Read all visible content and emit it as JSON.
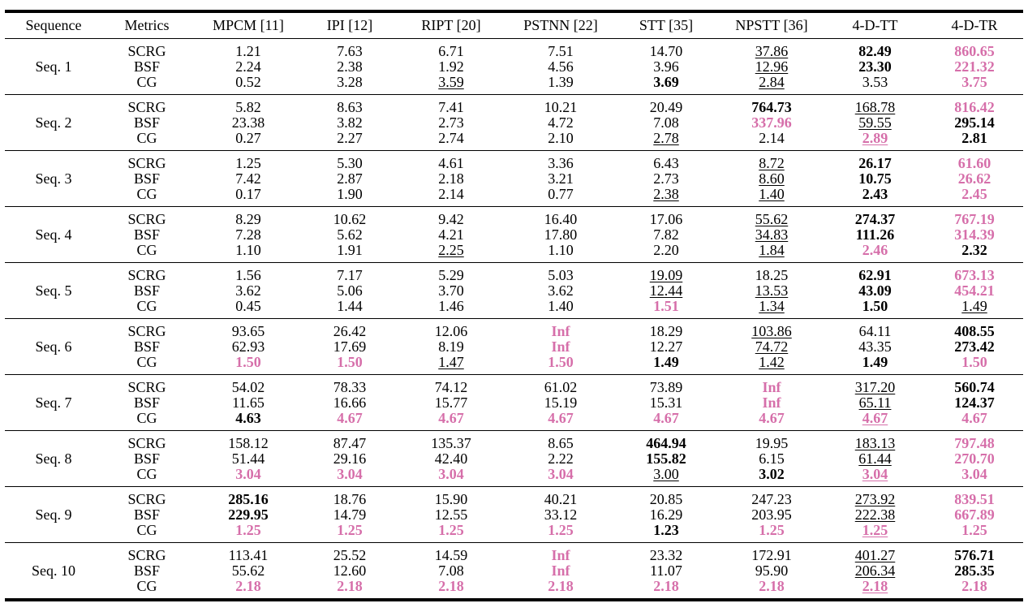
{
  "headers": [
    "Sequence",
    "Metrics",
    "MPCM [11]",
    "IPI [12]",
    "RIPT [20]",
    "PSTNN [22]",
    "STT [35]",
    "NPSTT [36]",
    "4-D-TT",
    "4-D-TR"
  ],
  "metric_names": [
    "SCRG",
    "BSF",
    "CG"
  ],
  "style_legend": {
    "n": "normal",
    "b": "bold",
    "p": "pink-bold (#d66faa)",
    "u": "underlined"
  },
  "colors": {
    "highlight": "#d66faa"
  },
  "rows": [
    {
      "seq": "Seq. 1",
      "cells": [
        [
          [
            "1.21",
            "n"
          ],
          [
            "2.24",
            "n"
          ],
          [
            "0.52",
            "n"
          ]
        ],
        [
          [
            "7.63",
            "n"
          ],
          [
            "2.38",
            "n"
          ],
          [
            "3.28",
            "n"
          ]
        ],
        [
          [
            "6.71",
            "n"
          ],
          [
            "1.92",
            "n"
          ],
          [
            "3.59",
            "u"
          ]
        ],
        [
          [
            "7.51",
            "n"
          ],
          [
            "4.56",
            "n"
          ],
          [
            "1.39",
            "n"
          ]
        ],
        [
          [
            "14.70",
            "n"
          ],
          [
            "3.96",
            "n"
          ],
          [
            "3.69",
            "b"
          ]
        ],
        [
          [
            "37.86",
            "u"
          ],
          [
            "12.96",
            "u"
          ],
          [
            "2.84",
            "u"
          ]
        ],
        [
          [
            "82.49",
            "b"
          ],
          [
            "23.30",
            "b"
          ],
          [
            "3.53",
            "n"
          ]
        ],
        [
          [
            "860.65",
            "p"
          ],
          [
            "221.32",
            "p"
          ],
          [
            "3.75",
            "p"
          ]
        ]
      ]
    },
    {
      "seq": "Seq. 2",
      "cells": [
        [
          [
            "5.82",
            "n"
          ],
          [
            "23.38",
            "n"
          ],
          [
            "0.27",
            "n"
          ]
        ],
        [
          [
            "8.63",
            "n"
          ],
          [
            "3.82",
            "n"
          ],
          [
            "2.27",
            "n"
          ]
        ],
        [
          [
            "7.41",
            "n"
          ],
          [
            "2.73",
            "n"
          ],
          [
            "2.74",
            "n"
          ]
        ],
        [
          [
            "10.21",
            "n"
          ],
          [
            "4.72",
            "n"
          ],
          [
            "2.10",
            "n"
          ]
        ],
        [
          [
            "20.49",
            "n"
          ],
          [
            "7.08",
            "n"
          ],
          [
            "2.78",
            "u"
          ]
        ],
        [
          [
            "764.73",
            "b"
          ],
          [
            "337.96",
            "p"
          ],
          [
            "2.14",
            "n"
          ]
        ],
        [
          [
            "168.78",
            "u"
          ],
          [
            "59.55",
            "u"
          ],
          [
            "2.89",
            "pu"
          ]
        ],
        [
          [
            "816.42",
            "p"
          ],
          [
            "295.14",
            "b"
          ],
          [
            "2.81",
            "b"
          ]
        ]
      ]
    },
    {
      "seq": "Seq. 3",
      "cells": [
        [
          [
            "1.25",
            "n"
          ],
          [
            "7.42",
            "n"
          ],
          [
            "0.17",
            "n"
          ]
        ],
        [
          [
            "5.30",
            "n"
          ],
          [
            "2.87",
            "n"
          ],
          [
            "1.90",
            "n"
          ]
        ],
        [
          [
            "4.61",
            "n"
          ],
          [
            "2.18",
            "n"
          ],
          [
            "2.14",
            "n"
          ]
        ],
        [
          [
            "3.36",
            "n"
          ],
          [
            "3.21",
            "n"
          ],
          [
            "0.77",
            "n"
          ]
        ],
        [
          [
            "6.43",
            "n"
          ],
          [
            "2.73",
            "n"
          ],
          [
            "2.38",
            "u"
          ]
        ],
        [
          [
            "8.72",
            "u"
          ],
          [
            "8.60",
            "u"
          ],
          [
            "1.40",
            "u"
          ]
        ],
        [
          [
            "26.17",
            "b"
          ],
          [
            "10.75",
            "b"
          ],
          [
            "2.43",
            "b"
          ]
        ],
        [
          [
            "61.60",
            "p"
          ],
          [
            "26.62",
            "p"
          ],
          [
            "2.45",
            "p"
          ]
        ]
      ]
    },
    {
      "seq": "Seq. 4",
      "cells": [
        [
          [
            "8.29",
            "n"
          ],
          [
            "7.28",
            "n"
          ],
          [
            "1.10",
            "n"
          ]
        ],
        [
          [
            "10.62",
            "n"
          ],
          [
            "5.62",
            "n"
          ],
          [
            "1.91",
            "n"
          ]
        ],
        [
          [
            "9.42",
            "n"
          ],
          [
            "4.21",
            "n"
          ],
          [
            "2.25",
            "u"
          ]
        ],
        [
          [
            "16.40",
            "n"
          ],
          [
            "17.80",
            "n"
          ],
          [
            "1.10",
            "n"
          ]
        ],
        [
          [
            "17.06",
            "n"
          ],
          [
            "7.82",
            "n"
          ],
          [
            "2.20",
            "n"
          ]
        ],
        [
          [
            "55.62",
            "u"
          ],
          [
            "34.83",
            "u"
          ],
          [
            "1.84",
            "u"
          ]
        ],
        [
          [
            "274.37",
            "b"
          ],
          [
            "111.26",
            "b"
          ],
          [
            "2.46",
            "p"
          ]
        ],
        [
          [
            "767.19",
            "p"
          ],
          [
            "314.39",
            "p"
          ],
          [
            "2.32",
            "b"
          ]
        ]
      ]
    },
    {
      "seq": "Seq. 5",
      "cells": [
        [
          [
            "1.56",
            "n"
          ],
          [
            "3.62",
            "n"
          ],
          [
            "0.45",
            "n"
          ]
        ],
        [
          [
            "7.17",
            "n"
          ],
          [
            "5.06",
            "n"
          ],
          [
            "1.44",
            "n"
          ]
        ],
        [
          [
            "5.29",
            "n"
          ],
          [
            "3.70",
            "n"
          ],
          [
            "1.46",
            "n"
          ]
        ],
        [
          [
            "5.03",
            "n"
          ],
          [
            "3.62",
            "n"
          ],
          [
            "1.40",
            "n"
          ]
        ],
        [
          [
            "19.09",
            "u"
          ],
          [
            "12.44",
            "u"
          ],
          [
            "1.51",
            "p"
          ]
        ],
        [
          [
            "18.25",
            "n"
          ],
          [
            "13.53",
            "u"
          ],
          [
            "1.34",
            "u"
          ]
        ],
        [
          [
            "62.91",
            "b"
          ],
          [
            "43.09",
            "b"
          ],
          [
            "1.50",
            "b"
          ]
        ],
        [
          [
            "673.13",
            "p"
          ],
          [
            "454.21",
            "p"
          ],
          [
            "1.49",
            "u"
          ]
        ]
      ]
    },
    {
      "seq": "Seq. 6",
      "cells": [
        [
          [
            "93.65",
            "n"
          ],
          [
            "62.93",
            "n"
          ],
          [
            "1.50",
            "p"
          ]
        ],
        [
          [
            "26.42",
            "n"
          ],
          [
            "17.69",
            "n"
          ],
          [
            "1.50",
            "p"
          ]
        ],
        [
          [
            "12.06",
            "n"
          ],
          [
            "8.19",
            "n"
          ],
          [
            "1.47",
            "u"
          ]
        ],
        [
          [
            "Inf",
            "p"
          ],
          [
            "Inf",
            "p"
          ],
          [
            "1.50",
            "p"
          ]
        ],
        [
          [
            "18.29",
            "n"
          ],
          [
            "12.27",
            "n"
          ],
          [
            "1.49",
            "b"
          ]
        ],
        [
          [
            "103.86",
            "u"
          ],
          [
            "74.72",
            "u"
          ],
          [
            "1.42",
            "u"
          ]
        ],
        [
          [
            "64.11",
            "n"
          ],
          [
            "43.35",
            "n"
          ],
          [
            "1.49",
            "b"
          ]
        ],
        [
          [
            "408.55",
            "b"
          ],
          [
            "273.42",
            "b"
          ],
          [
            "1.50",
            "p"
          ]
        ]
      ]
    },
    {
      "seq": "Seq. 7",
      "cells": [
        [
          [
            "54.02",
            "n"
          ],
          [
            "11.65",
            "n"
          ],
          [
            "4.63",
            "b"
          ]
        ],
        [
          [
            "78.33",
            "n"
          ],
          [
            "16.66",
            "n"
          ],
          [
            "4.67",
            "p"
          ]
        ],
        [
          [
            "74.12",
            "n"
          ],
          [
            "15.77",
            "n"
          ],
          [
            "4.67",
            "p"
          ]
        ],
        [
          [
            "61.02",
            "n"
          ],
          [
            "15.19",
            "n"
          ],
          [
            "4.67",
            "p"
          ]
        ],
        [
          [
            "73.89",
            "n"
          ],
          [
            "15.31",
            "n"
          ],
          [
            "4.67",
            "p"
          ]
        ],
        [
          [
            "Inf",
            "p"
          ],
          [
            "Inf",
            "p"
          ],
          [
            "4.67",
            "p"
          ]
        ],
        [
          [
            "317.20",
            "u"
          ],
          [
            "65.11",
            "u"
          ],
          [
            "4.67",
            "pu"
          ]
        ],
        [
          [
            "560.74",
            "b"
          ],
          [
            "124.37",
            "b"
          ],
          [
            "4.67",
            "p"
          ]
        ]
      ]
    },
    {
      "seq": "Seq. 8",
      "cells": [
        [
          [
            "158.12",
            "n"
          ],
          [
            "51.44",
            "n"
          ],
          [
            "3.04",
            "p"
          ]
        ],
        [
          [
            "87.47",
            "n"
          ],
          [
            "29.16",
            "n"
          ],
          [
            "3.04",
            "p"
          ]
        ],
        [
          [
            "135.37",
            "n"
          ],
          [
            "42.40",
            "n"
          ],
          [
            "3.04",
            "p"
          ]
        ],
        [
          [
            "8.65",
            "n"
          ],
          [
            "2.22",
            "n"
          ],
          [
            "3.04",
            "p"
          ]
        ],
        [
          [
            "464.94",
            "b"
          ],
          [
            "155.82",
            "b"
          ],
          [
            "3.00",
            "u"
          ]
        ],
        [
          [
            "19.95",
            "n"
          ],
          [
            "6.15",
            "n"
          ],
          [
            "3.02",
            "b"
          ]
        ],
        [
          [
            "183.13",
            "u"
          ],
          [
            "61.44",
            "u"
          ],
          [
            "3.04",
            "pu"
          ]
        ],
        [
          [
            "797.48",
            "p"
          ],
          [
            "270.70",
            "p"
          ],
          [
            "3.04",
            "p"
          ]
        ]
      ]
    },
    {
      "seq": "Seq. 9",
      "cells": [
        [
          [
            "285.16",
            "b"
          ],
          [
            "229.95",
            "b"
          ],
          [
            "1.25",
            "p"
          ]
        ],
        [
          [
            "18.76",
            "n"
          ],
          [
            "14.79",
            "n"
          ],
          [
            "1.25",
            "p"
          ]
        ],
        [
          [
            "15.90",
            "n"
          ],
          [
            "12.55",
            "n"
          ],
          [
            "1.25",
            "p"
          ]
        ],
        [
          [
            "40.21",
            "n"
          ],
          [
            "33.12",
            "n"
          ],
          [
            "1.25",
            "p"
          ]
        ],
        [
          [
            "20.85",
            "n"
          ],
          [
            "16.29",
            "n"
          ],
          [
            "1.23",
            "b"
          ]
        ],
        [
          [
            "247.23",
            "n"
          ],
          [
            "203.95",
            "n"
          ],
          [
            "1.25",
            "p"
          ]
        ],
        [
          [
            "273.92",
            "u"
          ],
          [
            "222.38",
            "u"
          ],
          [
            "1.25",
            "pu"
          ]
        ],
        [
          [
            "839.51",
            "p"
          ],
          [
            "667.89",
            "p"
          ],
          [
            "1.25",
            "p"
          ]
        ]
      ]
    },
    {
      "seq": "Seq. 10",
      "cells": [
        [
          [
            "113.41",
            "n"
          ],
          [
            "55.62",
            "n"
          ],
          [
            "2.18",
            "p"
          ]
        ],
        [
          [
            "25.52",
            "n"
          ],
          [
            "12.60",
            "n"
          ],
          [
            "2.18",
            "p"
          ]
        ],
        [
          [
            "14.59",
            "n"
          ],
          [
            "7.08",
            "n"
          ],
          [
            "2.18",
            "p"
          ]
        ],
        [
          [
            "Inf",
            "p"
          ],
          [
            "Inf",
            "p"
          ],
          [
            "2.18",
            "p"
          ]
        ],
        [
          [
            "23.32",
            "n"
          ],
          [
            "11.07",
            "n"
          ],
          [
            "2.18",
            "p"
          ]
        ],
        [
          [
            "172.91",
            "n"
          ],
          [
            "95.90",
            "n"
          ],
          [
            "2.18",
            "p"
          ]
        ],
        [
          [
            "401.27",
            "u"
          ],
          [
            "206.34",
            "u"
          ],
          [
            "2.18",
            "pu"
          ]
        ],
        [
          [
            "576.71",
            "b"
          ],
          [
            "285.35",
            "b"
          ],
          [
            "2.18",
            "p"
          ]
        ]
      ]
    }
  ]
}
